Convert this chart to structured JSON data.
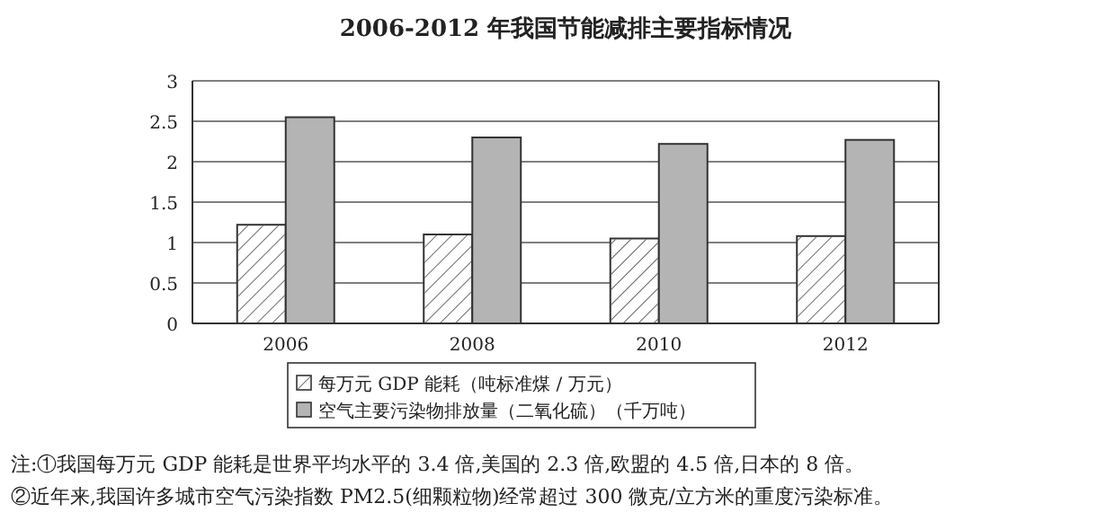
{
  "chart_data": {
    "type": "bar",
    "title": "2006-2012 年我国节能减排主要指标情况",
    "categories": [
      "2006",
      "2008",
      "2010",
      "2012"
    ],
    "series": [
      {
        "name": "每万元 GDP 能耗（吨标准煤 / 万元）",
        "color": "#ffffff",
        "values": [
          1.22,
          1.1,
          1.05,
          1.08
        ]
      },
      {
        "name": "空气主要污染物排放量（二氧化硫）（千万吨）",
        "color": "#b4b4b4",
        "values": [
          2.55,
          2.3,
          2.22,
          2.27
        ]
      }
    ],
    "ylim": [
      0,
      3
    ],
    "yticks": [
      0,
      0.5,
      1,
      1.5,
      2,
      2.5,
      3
    ],
    "grid": "y",
    "legend": "bottom",
    "annotations": [
      "注:①我国每万元 GDP 能耗是世界平均水平的 3.4 倍,美国的 2.3 倍,欧盟的 4.5 倍,日本的 8 倍。",
      "②近年来,我国许多城市空气污染指数 PM2.5(细颗粒物)经常超过 300 微克/立方米的重度污染标准。"
    ]
  }
}
